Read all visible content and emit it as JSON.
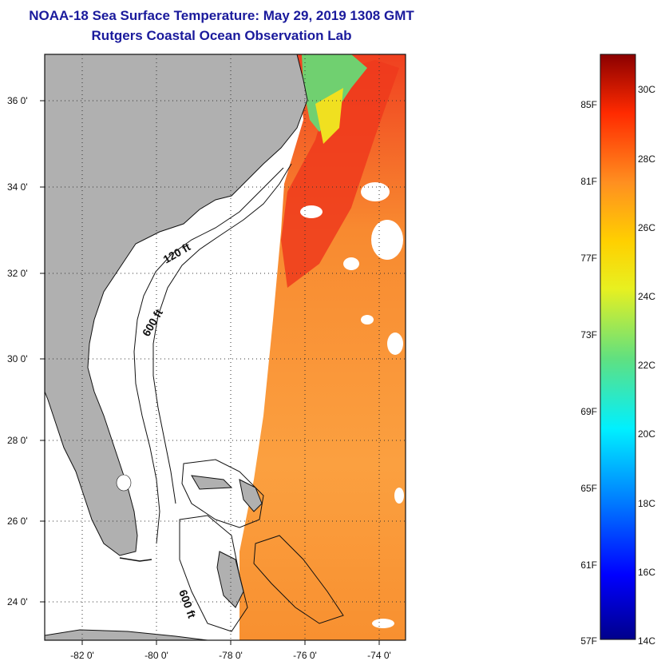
{
  "title": {
    "line1": "NOAA-18 Sea Surface Temperature:  May 29, 2019 1308 GMT",
    "line2": "Rutgers Coastal Ocean Observation Lab"
  },
  "map": {
    "lat_ticks": [
      "36 0'",
      "34 0'",
      "32 0'",
      "30 0'",
      "28 0'",
      "26 0'",
      "24 0'"
    ],
    "lon_ticks": [
      "-82 0'",
      "-80 0'",
      "-78 0'",
      "-76 0'",
      "-74 0'"
    ],
    "contours": [
      {
        "label": "120 ft"
      },
      {
        "label": "600 ft"
      },
      {
        "label": "600 ft"
      }
    ],
    "land_color": "#b0b0b0"
  },
  "colorbar": {
    "fahrenheit": [
      "85F",
      "81F",
      "77F",
      "73F",
      "69F",
      "65F",
      "61F",
      "57F"
    ],
    "celsius": [
      "30C",
      "28C",
      "26C",
      "24C",
      "22C",
      "20C",
      "18C",
      "16C",
      "14C"
    ]
  }
}
